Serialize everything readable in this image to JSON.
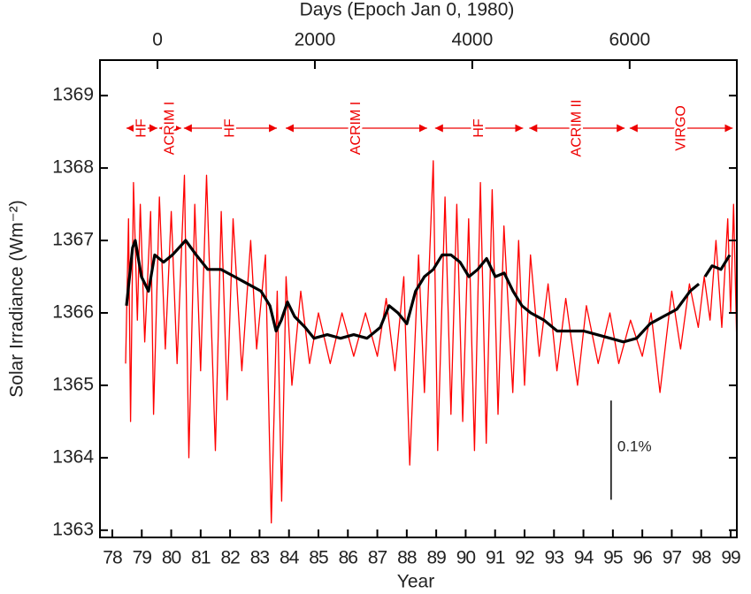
{
  "chart_data": {
    "type": "line",
    "title": "Days (Epoch Jan 0, 1980)",
    "xlabel": "Year",
    "ylabel": "Solar Irradiance (Wm⁻²)",
    "xlim": [
      77.58,
      99.21
    ],
    "xticks": [
      78,
      79,
      80,
      81,
      82,
      83,
      84,
      85,
      86,
      87,
      88,
      89,
      90,
      91,
      92,
      93,
      94,
      95,
      96,
      97,
      98,
      99
    ],
    "x2lim": [
      -731,
      7362
    ],
    "x2ticks": [
      0,
      2000,
      4000,
      6000
    ],
    "ylim": [
      1362.9,
      1369.49
    ],
    "yticks": [
      1363,
      1364,
      1365,
      1366,
      1367,
      1368,
      1369
    ],
    "series": [
      {
        "color": "#ff0000",
        "x": [
          78.45,
          78.55,
          78.62,
          78.72,
          78.85,
          78.95,
          79.1,
          79.3,
          79.4,
          79.6,
          79.8,
          80.0,
          80.2,
          80.45,
          80.6,
          80.8,
          81.0,
          81.2,
          81.5,
          81.7,
          81.9,
          82.1,
          82.4,
          82.7,
          82.9,
          83.2,
          83.4,
          83.6,
          83.75,
          83.9,
          84.1,
          84.4,
          84.7,
          85.0,
          85.4,
          85.8,
          86.2,
          86.6,
          87.0,
          87.3,
          87.6,
          87.9,
          88.1,
          88.4,
          88.6,
          88.9,
          89.05,
          89.3,
          89.5,
          89.7,
          89.9,
          90.1,
          90.3,
          90.5,
          90.7,
          90.9,
          91.1,
          91.3,
          91.6,
          91.8,
          92.0,
          92.2,
          92.5,
          92.8,
          93.1,
          93.4,
          93.8,
          94.1,
          94.5,
          94.9,
          95.2,
          95.6,
          96.0,
          96.3,
          96.6,
          97.0,
          97.3,
          97.6,
          97.9,
          98.1,
          98.3,
          98.5,
          98.7,
          98.9,
          99.0,
          99.1,
          99.2
        ],
        "values": [
          1365.3,
          1367.3,
          1364.5,
          1367.8,
          1365.9,
          1367.5,
          1365.6,
          1367.4,
          1364.6,
          1367.6,
          1365.5,
          1367.4,
          1365.3,
          1367.9,
          1364.0,
          1367.5,
          1365.2,
          1367.9,
          1364.1,
          1367.4,
          1364.8,
          1367.3,
          1365.2,
          1367.0,
          1365.5,
          1366.8,
          1363.1,
          1366.3,
          1363.4,
          1366.5,
          1365.0,
          1366.3,
          1365.3,
          1366.0,
          1365.3,
          1366.0,
          1365.4,
          1366.0,
          1365.4,
          1366.2,
          1365.2,
          1366.5,
          1363.9,
          1366.8,
          1364.9,
          1368.1,
          1364.1,
          1367.6,
          1364.6,
          1367.5,
          1364.5,
          1367.3,
          1364.1,
          1367.8,
          1364.2,
          1367.7,
          1364.6,
          1367.2,
          1364.9,
          1367.0,
          1365.0,
          1366.8,
          1365.4,
          1366.4,
          1365.2,
          1366.2,
          1365.0,
          1366.1,
          1365.3,
          1366.0,
          1365.3,
          1365.9,
          1365.4,
          1366.0,
          1364.9,
          1366.3,
          1365.5,
          1366.4,
          1365.8,
          1366.5,
          1365.9,
          1367.0,
          1365.8,
          1367.3,
          1366.0,
          1367.5,
          1365.7
        ]
      },
      {
        "color": "#000000",
        "x": [
          78.48,
          78.69,
          78.78,
          78.99,
          79.23,
          79.44,
          79.74,
          80.04,
          80.49,
          80.85,
          81.24,
          81.69,
          82.15,
          82.6,
          83.05,
          83.35,
          83.56,
          83.74,
          83.95,
          84.19,
          84.55,
          84.85,
          85.3,
          85.75,
          86.2,
          86.65,
          87.1,
          87.4,
          87.7,
          88.0,
          88.3,
          88.6,
          88.9,
          89.2,
          89.5,
          89.81,
          90.11,
          90.41,
          90.71,
          91.01,
          91.31,
          91.61,
          91.91,
          92.21,
          92.66,
          93.11,
          93.56,
          94.01,
          94.46,
          94.91,
          95.36,
          95.81,
          96.26,
          96.71,
          97.17,
          97.62,
          97.92,
          98.05,
          98.13,
          98.37,
          98.67,
          98.97
        ],
        "values": [
          1366.1,
          1366.9,
          1367.0,
          1366.5,
          1366.3,
          1366.8,
          1366.7,
          1366.8,
          1367.0,
          1366.8,
          1366.6,
          1366.6,
          1366.5,
          1366.4,
          1366.3,
          1366.1,
          1365.75,
          1365.9,
          1366.15,
          1365.95,
          1365.8,
          1365.65,
          1365.7,
          1365.65,
          1365.7,
          1365.65,
          1365.8,
          1366.1,
          1366.0,
          1365.85,
          1366.3,
          1366.5,
          1366.6,
          1366.8,
          1366.8,
          1366.7,
          1366.5,
          1366.6,
          1366.75,
          1366.5,
          1366.55,
          1366.3,
          1366.1,
          1366.0,
          1365.9,
          1365.75,
          1365.75,
          1365.75,
          1365.7,
          1365.65,
          1365.6,
          1365.65,
          1365.85,
          1365.95,
          1366.05,
          1366.3,
          1366.4,
          null,
          1366.5,
          1366.65,
          1366.6,
          1366.8
        ]
      }
    ],
    "segments": [
      {
        "label": "HF",
        "start": 78.48,
        "end": 79.53
      },
      {
        "label": "ACRIM I",
        "start": 79.59,
        "end": 80.34
      },
      {
        "label": "HF",
        "start": 80.43,
        "end": 83.59
      },
      {
        "label": "ACRIM I",
        "start": 83.89,
        "end": 88.69
      },
      {
        "label": "HF",
        "start": 88.96,
        "end": 91.95
      },
      {
        "label": "ACRIM II",
        "start": 92.16,
        "end": 95.4
      },
      {
        "label": "VIRGO",
        "start": 95.57,
        "end": 99.07
      }
    ],
    "scale_bar": {
      "label": "0.1%",
      "x": 94.94,
      "low": 1363.42,
      "high": 1364.79
    }
  }
}
